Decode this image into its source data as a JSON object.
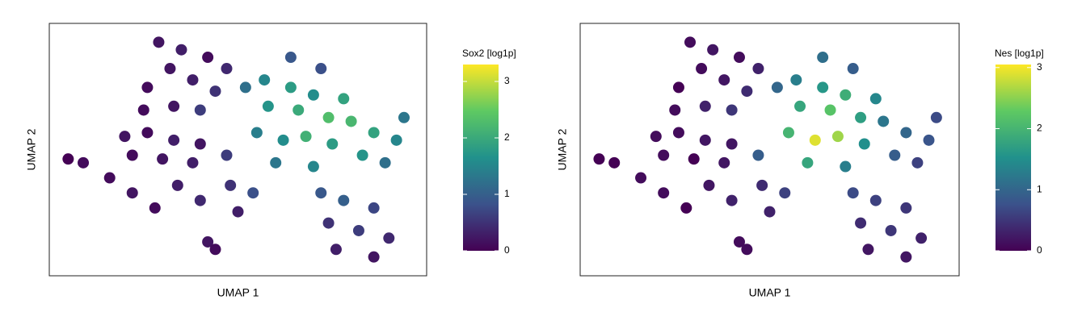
{
  "chart_data": [
    {
      "type": "scatter",
      "x_label": "UMAP 1",
      "y_label": "UMAP 2",
      "xlim": [
        0,
        100
      ],
      "ylim": [
        0,
        67
      ],
      "colorbar": {
        "title": "Sox2 [log1p]",
        "lim": [
          0,
          3.3
        ],
        "ticks": [
          0,
          1,
          2,
          3
        ],
        "colormap": "viridis"
      },
      "x": [
        29,
        35,
        42,
        47,
        32,
        38,
        26,
        44,
        25,
        33,
        40,
        52,
        57,
        64,
        70,
        58,
        66,
        74,
        80,
        86,
        92,
        55,
        62,
        68,
        75,
        83,
        89,
        60,
        70,
        20,
        26,
        33,
        40,
        22,
        30,
        38,
        5,
        9,
        16,
        22,
        28,
        34,
        40,
        48,
        54,
        50,
        42,
        44,
        72,
        78,
        86,
        74,
        82,
        90,
        76,
        86,
        47,
        64,
        72,
        78,
        94
      ],
      "y": [
        62,
        60,
        58,
        55,
        55,
        52,
        50,
        49,
        44,
        45,
        44,
        50,
        52,
        50,
        48,
        45,
        44,
        42,
        41,
        38,
        36,
        38,
        36,
        37,
        35,
        32,
        30,
        30,
        29,
        37,
        38,
        36,
        35,
        32,
        31,
        30,
        31,
        30,
        26,
        22,
        18,
        24,
        20,
        24,
        22,
        17,
        9,
        7,
        22,
        20,
        18,
        14,
        12,
        10,
        7,
        5,
        32,
        58,
        55,
        47,
        42
      ],
      "values": [
        0.2,
        0.3,
        0.1,
        0.4,
        0.2,
        0.3,
        0.1,
        0.5,
        0.1,
        0.2,
        0.6,
        1.2,
        1.5,
        1.8,
        1.6,
        1.7,
        2.0,
        2.3,
        2.2,
        1.9,
        1.5,
        1.4,
        1.6,
        2.1,
        1.8,
        1.7,
        1.2,
        1.3,
        1.5,
        0.2,
        0.1,
        0.3,
        0.2,
        0.1,
        0.2,
        0.3,
        0.0,
        0.1,
        0.1,
        0.2,
        0.1,
        0.3,
        0.4,
        0.5,
        0.8,
        0.3,
        0.2,
        0.1,
        0.9,
        1.0,
        0.7,
        0.5,
        0.6,
        0.4,
        0.3,
        0.2,
        0.6,
        0.9,
        0.8,
        1.9,
        1.3
      ]
    },
    {
      "type": "scatter",
      "x_label": "UMAP 1",
      "y_label": "UMAP 2",
      "xlim": [
        0,
        100
      ],
      "ylim": [
        0,
        67
      ],
      "colorbar": {
        "title": "Nes [log1p]",
        "lim": [
          0,
          3.05
        ],
        "ticks": [
          0,
          1,
          2,
          3
        ],
        "colormap": "viridis"
      },
      "x": [
        29,
        35,
        42,
        47,
        32,
        38,
        26,
        44,
        25,
        33,
        40,
        52,
        57,
        64,
        70,
        58,
        66,
        74,
        80,
        86,
        92,
        55,
        62,
        68,
        75,
        83,
        89,
        60,
        70,
        20,
        26,
        33,
        40,
        22,
        30,
        38,
        5,
        9,
        16,
        22,
        28,
        34,
        40,
        48,
        54,
        50,
        42,
        44,
        72,
        78,
        86,
        74,
        82,
        90,
        76,
        86,
        47,
        64,
        72,
        78,
        94
      ],
      "y": [
        62,
        60,
        58,
        55,
        55,
        52,
        50,
        49,
        44,
        45,
        44,
        50,
        52,
        50,
        48,
        45,
        44,
        42,
        41,
        38,
        36,
        38,
        36,
        37,
        35,
        32,
        30,
        30,
        29,
        37,
        38,
        36,
        35,
        32,
        31,
        30,
        31,
        30,
        26,
        22,
        18,
        24,
        20,
        24,
        22,
        17,
        9,
        7,
        22,
        20,
        18,
        14,
        12,
        10,
        7,
        5,
        32,
        58,
        55,
        47,
        42
      ],
      "values": [
        0.1,
        0.2,
        0.1,
        0.3,
        0.1,
        0.2,
        0.0,
        0.4,
        0.1,
        0.3,
        0.5,
        1.0,
        1.3,
        1.6,
        1.9,
        1.8,
        2.2,
        1.7,
        1.2,
        1.0,
        0.8,
        2.0,
        2.9,
        2.6,
        1.5,
        0.9,
        0.6,
        1.8,
        1.3,
        0.1,
        0.1,
        0.2,
        0.2,
        0.1,
        0.0,
        0.2,
        0.0,
        0.0,
        0.1,
        0.1,
        0.0,
        0.2,
        0.3,
        0.4,
        0.6,
        0.3,
        0.1,
        0.1,
        0.7,
        0.6,
        0.5,
        0.4,
        0.5,
        0.3,
        0.2,
        0.2,
        0.9,
        1.1,
        0.9,
        1.4,
        0.7
      ]
    }
  ]
}
